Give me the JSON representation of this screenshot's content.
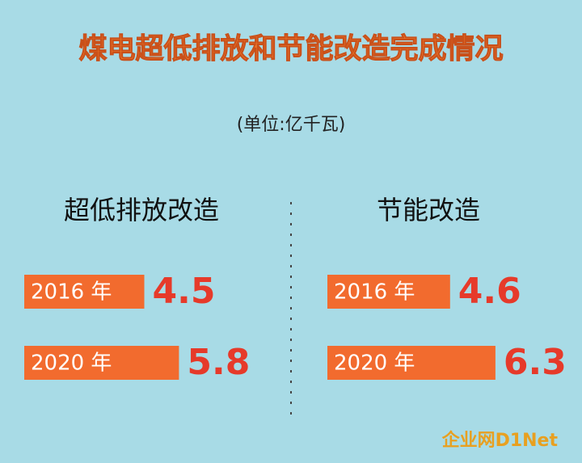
{
  "header": {
    "title": "煤电超低排放和节能改造完成情况",
    "subtitle": "(单位:亿千瓦)"
  },
  "chart_data": [
    {
      "type": "bar",
      "title": "超低排放改造",
      "categories": [
        "2016 年",
        "2020 年"
      ],
      "values": [
        4.5,
        5.8
      ],
      "color": "#f26b2e"
    },
    {
      "type": "bar",
      "title": "节能改造",
      "categories": [
        "2016 年",
        "2020 年"
      ],
      "values": [
        4.6,
        6.3
      ],
      "color": "#f26b2e"
    }
  ],
  "watermark": "企业网D1Net"
}
